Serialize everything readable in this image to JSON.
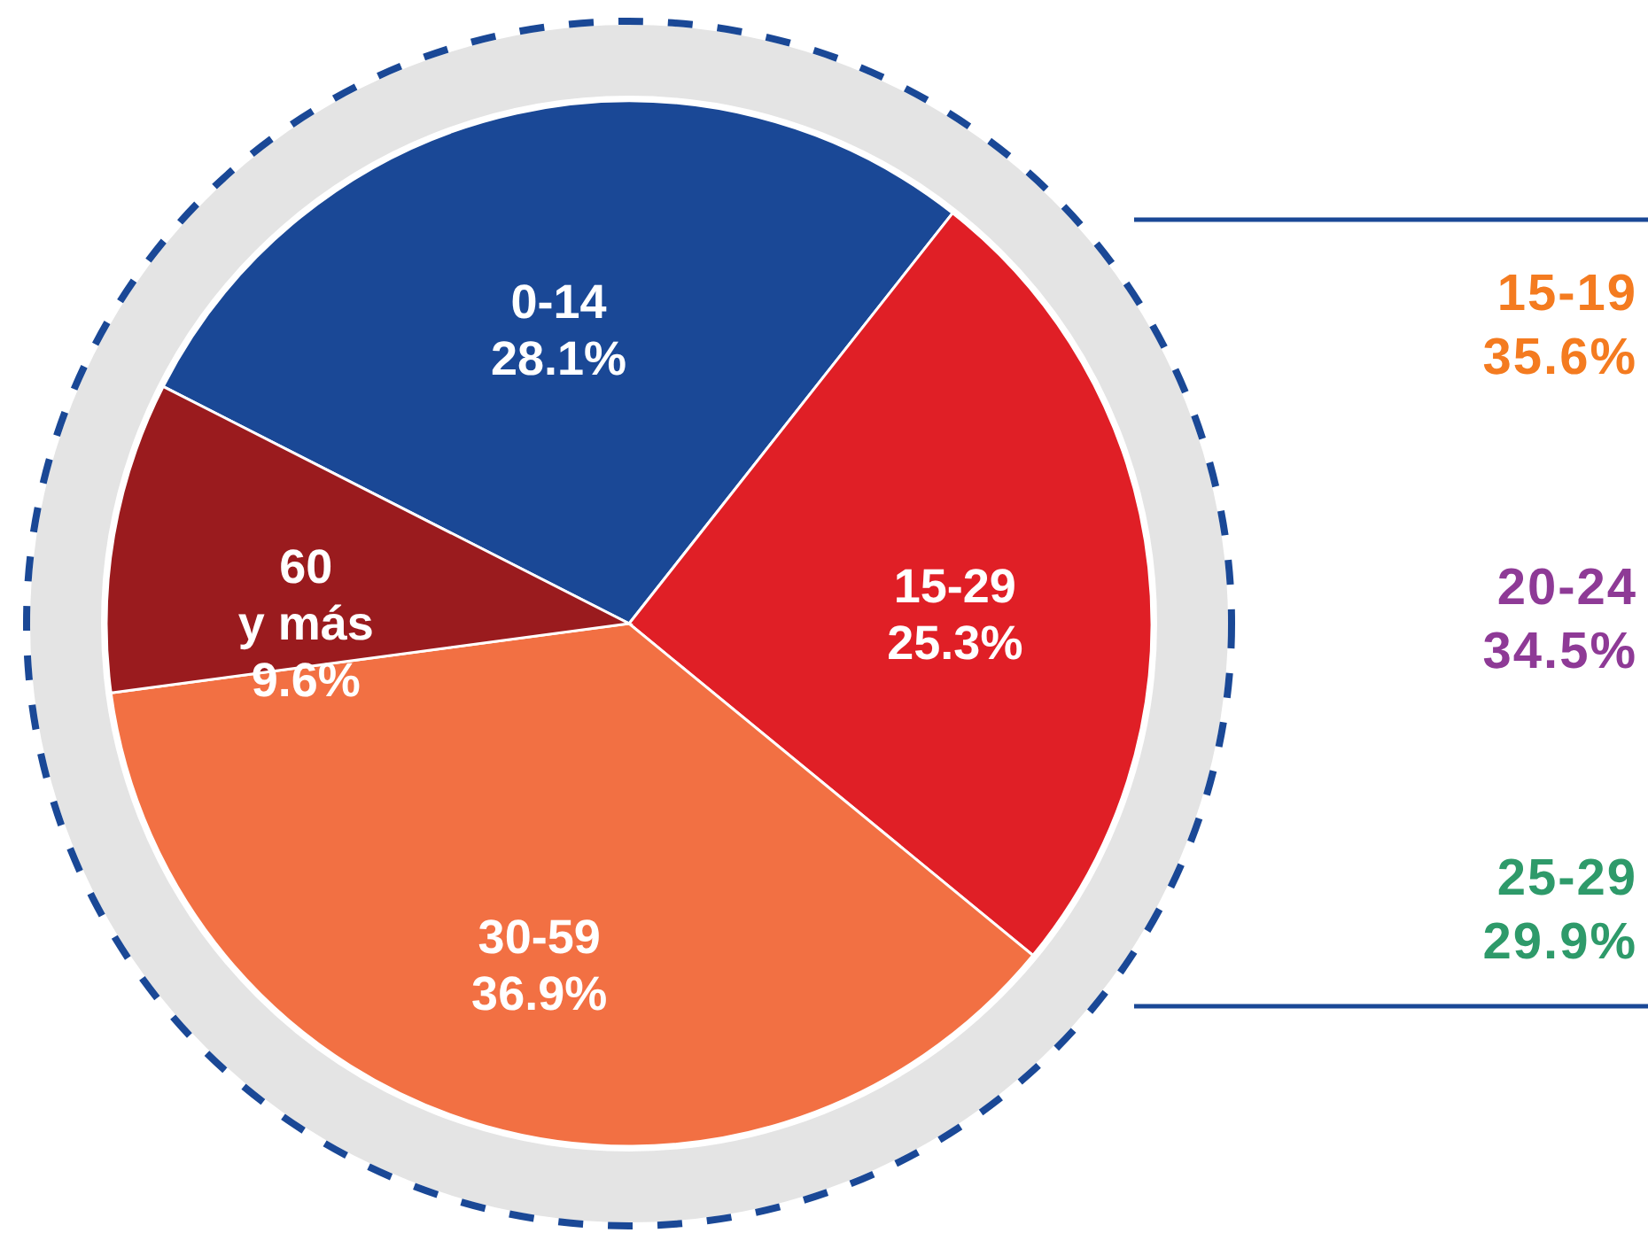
{
  "chart_data": {
    "type": "pie",
    "categories": [
      "0-14",
      "15-29",
      "30-59",
      "60 y más"
    ],
    "values": [
      28.1,
      25.3,
      36.9,
      9.6
    ],
    "colors": [
      "#1a4896",
      "#e01f26",
      "#f27043",
      "#9a1b1e"
    ],
    "value_labels": [
      "28.1%",
      "25.3%",
      "36.9%",
      "9.6%"
    ],
    "legend": false,
    "annotations": [
      "15-19\n35.6%",
      "20-24\n34.5%",
      "25-29\n29.9%"
    ]
  }
}
